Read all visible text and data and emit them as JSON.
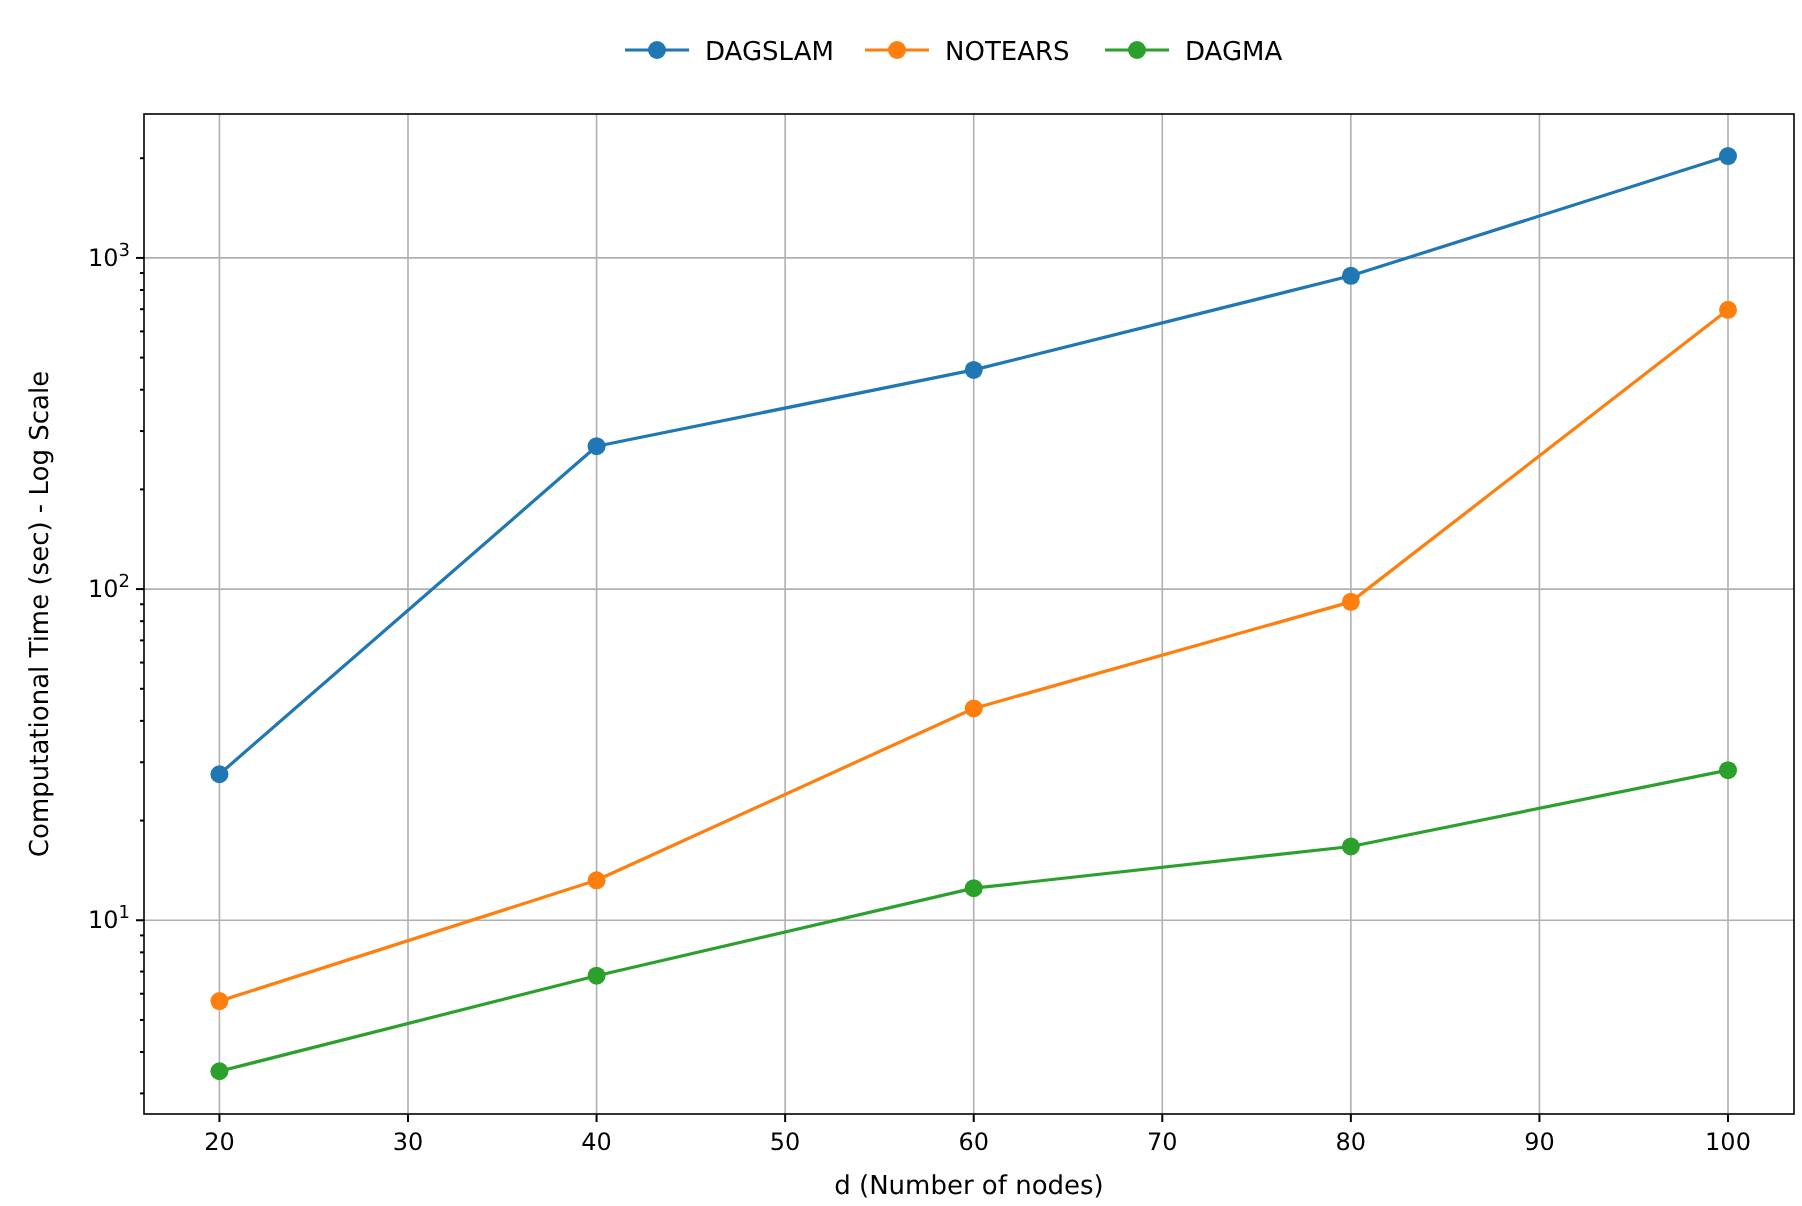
{
  "chart_data": {
    "type": "line",
    "xlabel": "d (Number of nodes)",
    "ylabel": "Computational Time (sec) - Log Scale",
    "x": [
      20,
      40,
      60,
      80,
      100
    ],
    "series": [
      {
        "name": "DAGSLAM",
        "color": "#1f77b4",
        "values": [
          27.6,
          270,
          459,
          883,
          2030
        ]
      },
      {
        "name": "NOTEARS",
        "color": "#ff7f0e",
        "values": [
          5.7,
          13.2,
          43.6,
          91.5,
          697
        ]
      },
      {
        "name": "DAGMA",
        "color": "#2ca02c",
        "values": [
          3.5,
          6.8,
          12.5,
          16.7,
          28.4
        ]
      }
    ],
    "xlim": [
      16,
      103.5
    ],
    "xticks": [
      20,
      30,
      40,
      50,
      60,
      70,
      80,
      90,
      100
    ],
    "ylim": [
      2.6,
      2720
    ],
    "yticks": [
      {
        "value": 3,
        "label": null
      },
      {
        "value": 4,
        "label": null
      },
      {
        "value": 5,
        "label": null
      },
      {
        "value": 6,
        "label": null
      },
      {
        "value": 7,
        "label": null
      },
      {
        "value": 8,
        "label": null
      },
      {
        "value": 9,
        "label": null
      },
      {
        "value": 10,
        "label": "10$^{1}$"
      },
      {
        "value": 20,
        "label": null
      },
      {
        "value": 30,
        "label": null
      },
      {
        "value": 40,
        "label": null
      },
      {
        "value": 50,
        "label": null
      },
      {
        "value": 60,
        "label": null
      },
      {
        "value": 70,
        "label": null
      },
      {
        "value": 80,
        "label": null
      },
      {
        "value": 90,
        "label": null
      },
      {
        "value": 100,
        "label": "10$^{2}$"
      },
      {
        "value": 200,
        "label": null
      },
      {
        "value": 300,
        "label": null
      },
      {
        "value": 400,
        "label": null
      },
      {
        "value": 500,
        "label": null
      },
      {
        "value": 600,
        "label": null
      },
      {
        "value": 700,
        "label": null
      },
      {
        "value": 800,
        "label": null
      },
      {
        "value": 900,
        "label": null
      },
      {
        "value": 1000,
        "label": "10$^{3}$"
      },
      {
        "value": 2000,
        "label": null
      }
    ],
    "log": true,
    "grid": true,
    "legend": "top",
    "marker": "circle",
    "line_style": "solid"
  }
}
